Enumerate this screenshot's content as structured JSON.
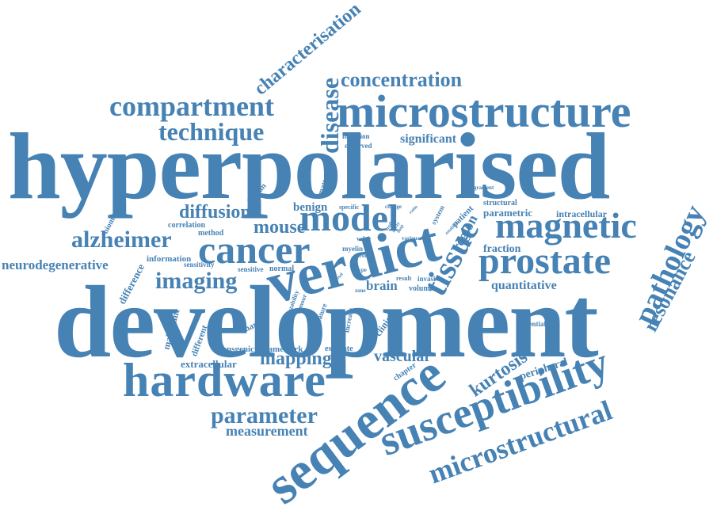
{
  "style": {
    "word_color": "#4682b4",
    "background": "#ffffff"
  },
  "words": {
    "hyperpolarised": "hyperpolarised",
    "development": "development",
    "microstructure": "microstructure",
    "verdict": "verdict",
    "hardware": "hardware",
    "sequence": "sequence",
    "susceptibility": "susceptibility",
    "prostate": "prostate",
    "magnetic": "magnetic",
    "cancer": "cancer",
    "model": "model",
    "compartment": "compartment",
    "technique": "technique",
    "disease": "disease",
    "characterisation": "characterisation",
    "concentration": "concentration",
    "microstructural": "microstructural",
    "pathology": "pathology",
    "resonance": "resonance",
    "tissue": "tissue",
    "alzheimer": "alzheimer",
    "imaging": "imaging",
    "parameter": "parameter",
    "measurement": "measurement",
    "mapping": "mapping",
    "diffusion": "diffusion",
    "mouse": "mouse",
    "neurodegenerative": "neurodegenerative",
    "kurtosis": "kurtosis",
    "vascular": "vascular",
    "quantitative": "quantitative",
    "significant": "significant",
    "fraction": "fraction",
    "parametric": "parametric",
    "intracellular": "intracellular",
    "region": "region",
    "benign": "benign",
    "brain": "brain",
    "peripheral": "peripheral",
    "difference": "difference",
    "malignant": "malignant",
    "extracellular": "extracellular",
    "transgenic": "transgenic",
    "framework": "framework",
    "estimate": "estimate",
    "biomarkers": "biomarkers",
    "correlation": "correlation",
    "method": "method",
    "information": "information",
    "sensitivity": "sensitivity",
    "sensitive": "sensitive",
    "normal": "normal",
    "human": "human",
    "matter": "matter",
    "inclusion": "inclusion",
    "observed": "observed",
    "specific": "specific",
    "patient": "patient",
    "system": "system",
    "structural": "structural",
    "gradient": "gradient",
    "myelin": "myelin",
    "iron": "iron",
    "value": "value",
    "various": "various",
    "result": "result",
    "invasive": "invasive",
    "volume": "volume",
    "zone": "zone",
    "type": "type",
    "change": "change",
    "increase": "increase",
    "clinical": "clinical",
    "feature": "feature",
    "stability": "stability",
    "tumour": "tumour",
    "marker": "marker",
    "different": "different",
    "chapter": "chapter",
    "potential": "potential",
    "vessel": "vessel",
    "establish": "establish",
    "study": "study",
    "array": "array",
    "map": "map",
    "ratio": "ratio"
  }
}
